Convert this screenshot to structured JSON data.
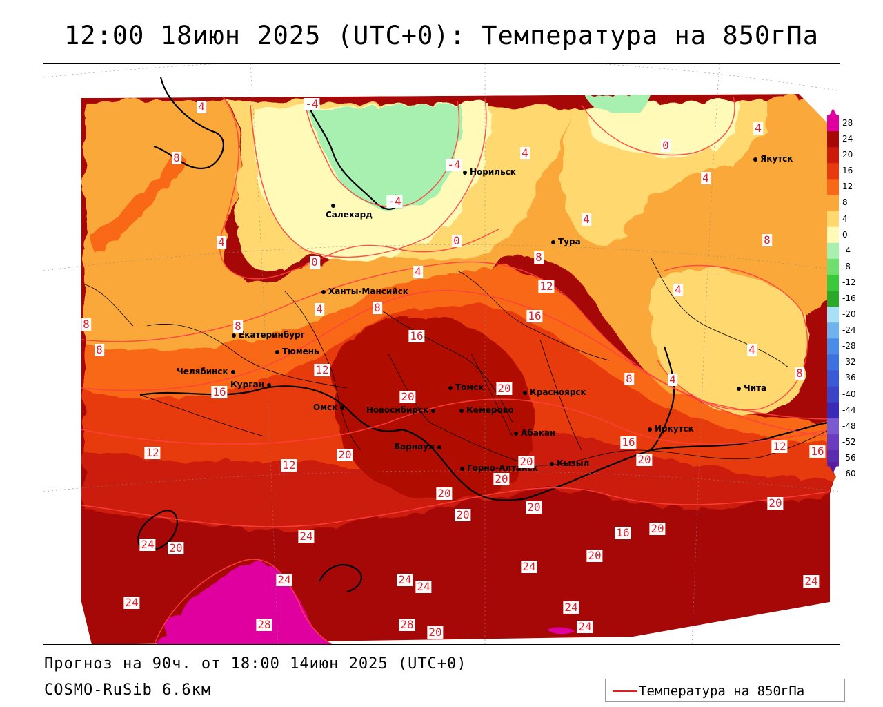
{
  "title": "12:00 18июн 2025 (UTC+0): Температура на 850гПа",
  "footer": {
    "forecast": "Прогноз на 90ч. от 18:00 14июн 2025 (UTC+0)",
    "model": "COSMO-RuSib 6.6км"
  },
  "legend": {
    "label": "Температура на 850гПа",
    "color": "#e02020"
  },
  "colors": {
    "lt_-60": "#5a1a9e",
    "-56": "#5a2cb0",
    "-52": "#6a3cc0",
    "-48": "#7a5ad0",
    "-44": "#3a2ab8",
    "-40": "#3a44c8",
    "-36": "#3a5ad6",
    "-32": "#3c72e0",
    "-28": "#4a8ce8",
    "-24": "#6fb2f0",
    "-20": "#a8e0f6",
    "-16": "#2aa82a",
    "-12": "#3cc83c",
    "-8": "#6fe06f",
    "-4": "#a8f0b0",
    "0": "#fffab8",
    "4": "#ffd870",
    "8": "#fba83a",
    "12": "#f86818",
    "16": "#e83a10",
    "20": "#cc1a0a",
    "24": "#a60808",
    "28": "#e000a0"
  },
  "scale_ticks": [
    "28",
    "24",
    "20",
    "16",
    "12",
    "8",
    "4",
    "0",
    "-4",
    "-8",
    "-12",
    "-16",
    "-20",
    "-24",
    "-28",
    "-32",
    "-36",
    "-40",
    "-44",
    "-48",
    "-52",
    "-56",
    "-60"
  ],
  "cities": [
    {
      "name": "Норильск"
    },
    {
      "name": "Якутск"
    },
    {
      "name": "Салехард"
    },
    {
      "name": "Тура"
    },
    {
      "name": "Ханты-Мансийск"
    },
    {
      "name": "Екатеринбург"
    },
    {
      "name": "Тюмень"
    },
    {
      "name": "Челябинск"
    },
    {
      "name": "Курган"
    },
    {
      "name": "Омск"
    },
    {
      "name": "Новосибирск"
    },
    {
      "name": "Томск"
    },
    {
      "name": "Кемерово"
    },
    {
      "name": "Красноярск"
    },
    {
      "name": "Барнаул"
    },
    {
      "name": "Абакан"
    },
    {
      "name": "Горно-Алтайск"
    },
    {
      "name": "Кызыл"
    },
    {
      "name": "Иркутск"
    },
    {
      "name": "Чита"
    }
  ],
  "contour_labels": [
    "4",
    "-4",
    "8",
    "-4",
    "4",
    "0",
    "4",
    "4",
    "4",
    "-4",
    "4",
    "0",
    "8",
    "4",
    "4",
    "0",
    "8",
    "8",
    "4",
    "4",
    "8",
    "8",
    "12",
    "16",
    "16",
    "12",
    "8",
    "4",
    "8",
    "4",
    "8",
    "12",
    "12",
    "16",
    "20",
    "20",
    "20",
    "16",
    "20",
    "20",
    "12",
    "16",
    "20",
    "20",
    "20",
    "20",
    "24",
    "24",
    "20",
    "16",
    "20",
    "20",
    "24",
    "28",
    "28",
    "24",
    "24",
    "24",
    "24",
    "20",
    "24",
    "24",
    "20",
    "24"
  ]
}
